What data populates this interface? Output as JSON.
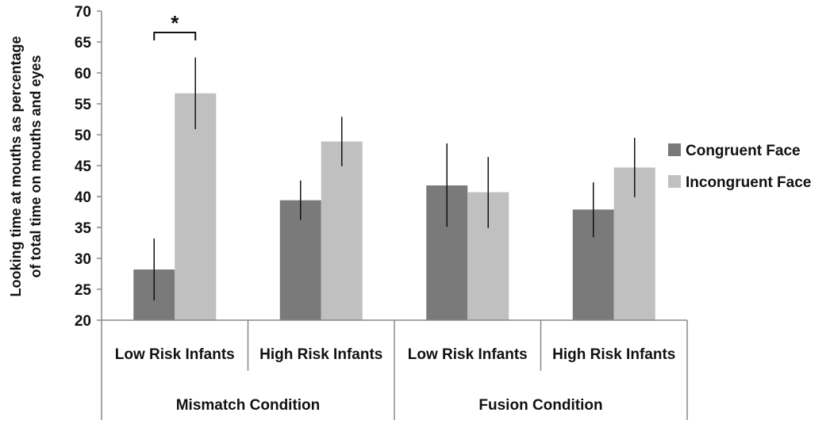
{
  "chart_data": {
    "type": "bar",
    "ylabel_lines": [
      "Looking time at mouths as percentage",
      "of total time on mouths and eyes"
    ],
    "ylim": [
      20,
      70
    ],
    "yticks": [
      20,
      25,
      30,
      35,
      40,
      45,
      50,
      55,
      60,
      65,
      70
    ],
    "grid": false,
    "legend_position": "right",
    "categories": [
      "Low Risk Infants",
      "High Risk Infants",
      "Low Risk Infants",
      "High Risk Infants"
    ],
    "groups": [
      {
        "label": "Mismatch Condition",
        "categories": [
          0,
          1
        ]
      },
      {
        "label": "Fusion Condition",
        "categories": [
          2,
          3
        ]
      }
    ],
    "series": [
      {
        "name": "Congruent Face",
        "color": "#7a7a7a",
        "values": [
          28.2,
          39.4,
          41.8,
          37.9
        ],
        "err_low": [
          23.2,
          36.2,
          35.1,
          33.4
        ],
        "err_high": [
          33.2,
          42.6,
          48.6,
          42.3
        ]
      },
      {
        "name": "Incongruent Face",
        "color": "#c0c0c0",
        "values": [
          56.7,
          48.9,
          40.7,
          44.7
        ],
        "err_low": [
          50.9,
          44.9,
          34.9,
          39.9
        ],
        "err_high": [
          62.5,
          52.9,
          46.4,
          49.5
        ]
      }
    ],
    "annotations": [
      {
        "text": "*",
        "category": 0
      }
    ]
  }
}
